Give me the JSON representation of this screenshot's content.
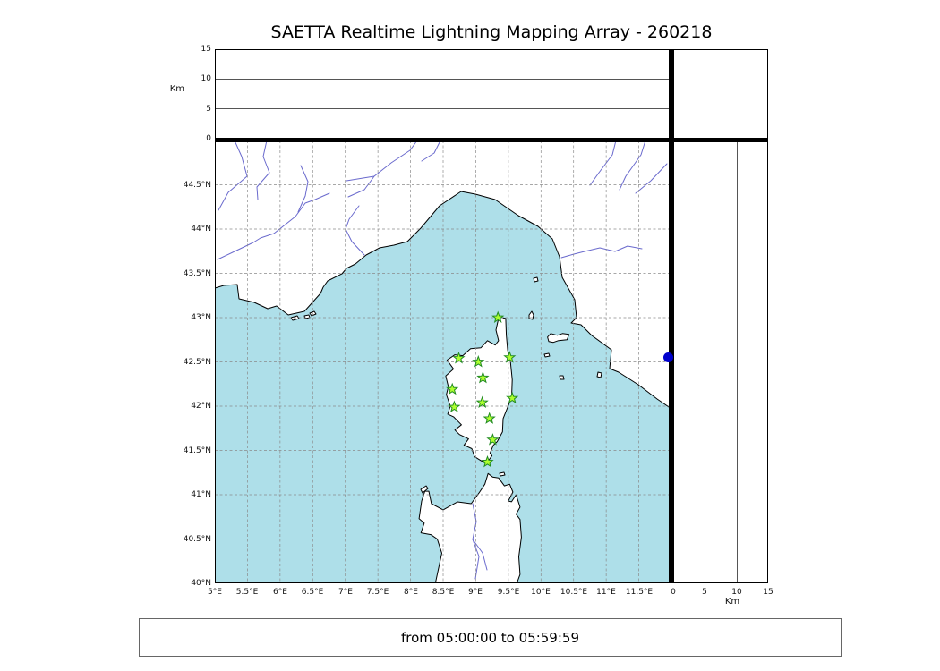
{
  "title": "SAETTA Realtime Lightning Mapping Array - 260218",
  "footer": {
    "time_range": "from 05:00:00 to 05:59:59"
  },
  "altitude_panel": {
    "axis_label_left": "Km",
    "axis_label_right": "Km",
    "range_km": [
      0,
      15
    ],
    "tick_labels_top_panel": [
      "15",
      "10",
      "5",
      "0"
    ],
    "tick_labels_right_panel": [
      "0",
      "5",
      "10",
      "15"
    ]
  },
  "map": {
    "lon_range_deg_e": [
      5,
      12
    ],
    "lat_range_deg_n": [
      40,
      45
    ],
    "lon_tick_labels": [
      "5°E",
      "5.5°E",
      "6°E",
      "6.5°E",
      "7°E",
      "7.5°E",
      "8°E",
      "8.5°E",
      "9°E",
      "9.5°E",
      "10°E",
      "10.5°E",
      "11°E",
      "11.5°E"
    ],
    "lat_tick_labels": [
      "44.5°N",
      "44°N",
      "43.5°N",
      "43°N",
      "42.5°N",
      "42°N",
      "41.5°N",
      "41°N",
      "40.5°N",
      "40°N"
    ],
    "colors": {
      "sea": "#aedfe9",
      "land": "#ffffff",
      "coast": "#000000",
      "river": "#6a6acd",
      "grid": "#8a8a8a",
      "station_fill": "#adff2f",
      "station_edge": "#228b22",
      "source_dot": "#0000cd"
    },
    "stations": [
      {
        "lon": 9.34,
        "lat": 43.0
      },
      {
        "lon": 8.74,
        "lat": 42.54
      },
      {
        "lon": 9.04,
        "lat": 42.5
      },
      {
        "lon": 9.52,
        "lat": 42.55
      },
      {
        "lon": 9.11,
        "lat": 42.32
      },
      {
        "lon": 8.64,
        "lat": 42.19
      },
      {
        "lon": 9.56,
        "lat": 42.09
      },
      {
        "lon": 8.67,
        "lat": 41.99
      },
      {
        "lon": 9.1,
        "lat": 42.04
      },
      {
        "lon": 9.21,
        "lat": 41.86
      },
      {
        "lon": 9.26,
        "lat": 41.62
      },
      {
        "lon": 9.18,
        "lat": 41.37
      }
    ],
    "source_dot": {
      "lon": 11.95,
      "lat": 42.55
    }
  }
}
